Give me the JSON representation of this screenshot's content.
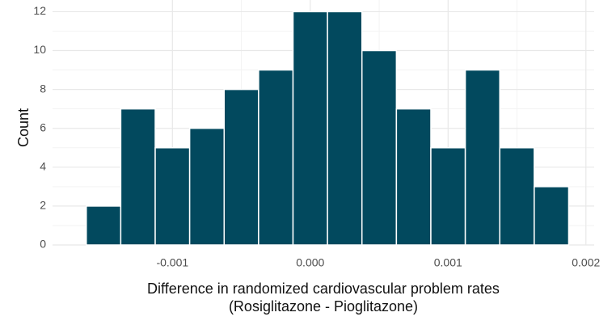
{
  "chart_data": {
    "type": "histogram",
    "bins": [
      -0.001625,
      -0.001375,
      -0.001125,
      -0.000875,
      -0.000625,
      -0.000375,
      -0.000125,
      0.000125,
      0.000375,
      0.000625,
      0.000875,
      0.001125,
      0.001375,
      0.001625,
      0.001875
    ],
    "values": [
      2,
      7,
      5,
      6,
      8,
      9,
      12,
      12,
      10,
      7,
      5,
      9,
      5,
      3
    ],
    "color": "#02495e",
    "xlim": [
      -0.00187,
      0.00206
    ],
    "xticks": [
      -0.001,
      {
        "value": 0,
        "label": "0.000"
      },
      0.001,
      0.002
    ],
    "ylim": [
      0,
      12.6
    ],
    "yticks": [
      0,
      2,
      4,
      6,
      8,
      10,
      12
    ],
    "ylabel": "Count",
    "xlabel": [
      "Difference in randomized cardiovascular problem rates",
      "(Rosiglitazone - Pioglitazone)"
    ],
    "grid": true
  }
}
